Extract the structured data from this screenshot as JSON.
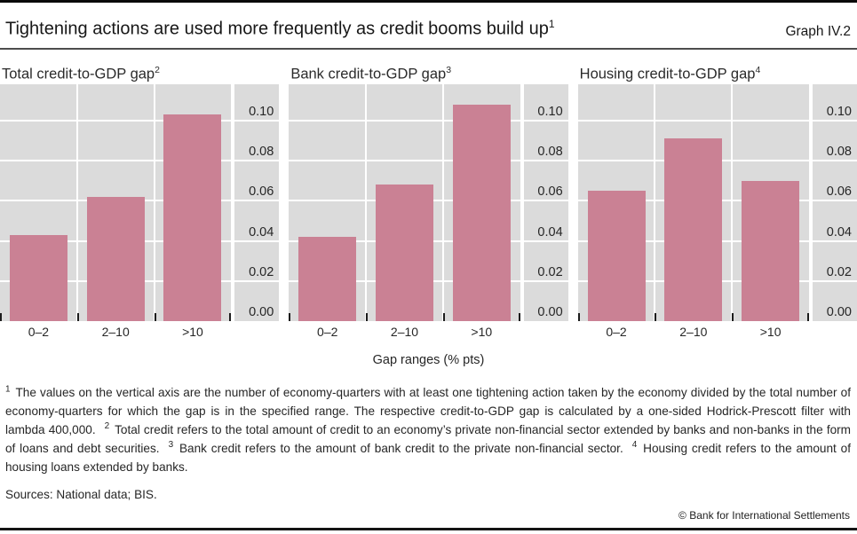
{
  "page": {
    "title": "Tightening actions are used more frequently as credit booms build up",
    "title_sup": "1",
    "graph_label": "Graph IV.2",
    "xaxis_label": "Gap ranges (% pts)",
    "sources": "Sources: National data; BIS.",
    "copyright": "© Bank for International Settlements"
  },
  "footnotes": [
    {
      "sup": "1",
      "text": "The values on the vertical axis are the number of economy-quarters with at least one tightening action taken by the economy divided by the total number of economy-quarters for which the gap is in the specified range. The respective credit-to-GDP gap is calculated by a one-sided Hodrick-Prescott filter with lambda 400,000."
    },
    {
      "sup": "2",
      "text": "Total credit refers to the total amount of credit to an economy’s private non-financial sector extended by banks and non-banks in the form of loans and debt securities."
    },
    {
      "sup": "3",
      "text": "Bank credit refers to the amount of bank credit to the private non-financial sector."
    },
    {
      "sup": "4",
      "text": "Housing credit refers to the amount of housing loans extended by banks."
    }
  ],
  "chart_data": [
    {
      "type": "bar",
      "title": "Total credit-to-GDP gap",
      "title_sup": "2",
      "categories": [
        "0–2",
        "2–10",
        ">10"
      ],
      "values": [
        0.043,
        0.062,
        0.103
      ],
      "ytick_values": [
        0.0,
        0.02,
        0.04,
        0.06,
        0.08,
        0.1
      ],
      "ytick_labels": [
        "0.00",
        "0.02",
        "0.04",
        "0.06",
        "0.08",
        "0.10"
      ],
      "ylim": [
        0,
        0.118
      ],
      "grid": "horizontal-and-category-separators",
      "legend": "none"
    },
    {
      "type": "bar",
      "title": "Bank credit-to-GDP gap",
      "title_sup": "3",
      "categories": [
        "0–2",
        "2–10",
        ">10"
      ],
      "values": [
        0.042,
        0.068,
        0.108
      ],
      "ytick_values": [
        0.0,
        0.02,
        0.04,
        0.06,
        0.08,
        0.1
      ],
      "ytick_labels": [
        "0.00",
        "0.02",
        "0.04",
        "0.06",
        "0.08",
        "0.10"
      ],
      "ylim": [
        0,
        0.118
      ],
      "grid": "horizontal-and-category-separators",
      "legend": "none"
    },
    {
      "type": "bar",
      "title": "Housing credit-to-GDP gap",
      "title_sup": "4",
      "categories": [
        "0–2",
        "2–10",
        ">10"
      ],
      "values": [
        0.065,
        0.091,
        0.07
      ],
      "ytick_values": [
        0.0,
        0.02,
        0.04,
        0.06,
        0.08,
        0.1
      ],
      "ytick_labels": [
        "0.00",
        "0.02",
        "0.04",
        "0.06",
        "0.08",
        "0.10"
      ],
      "ylim": [
        0,
        0.118
      ],
      "grid": "horizontal-and-category-separators",
      "legend": "none"
    }
  ],
  "colors": {
    "bar": "#ca8194",
    "plot_background": "#dbdbdb",
    "gridline": "#ffffff",
    "text": "#262626",
    "rule": "#0a0a0a"
  }
}
